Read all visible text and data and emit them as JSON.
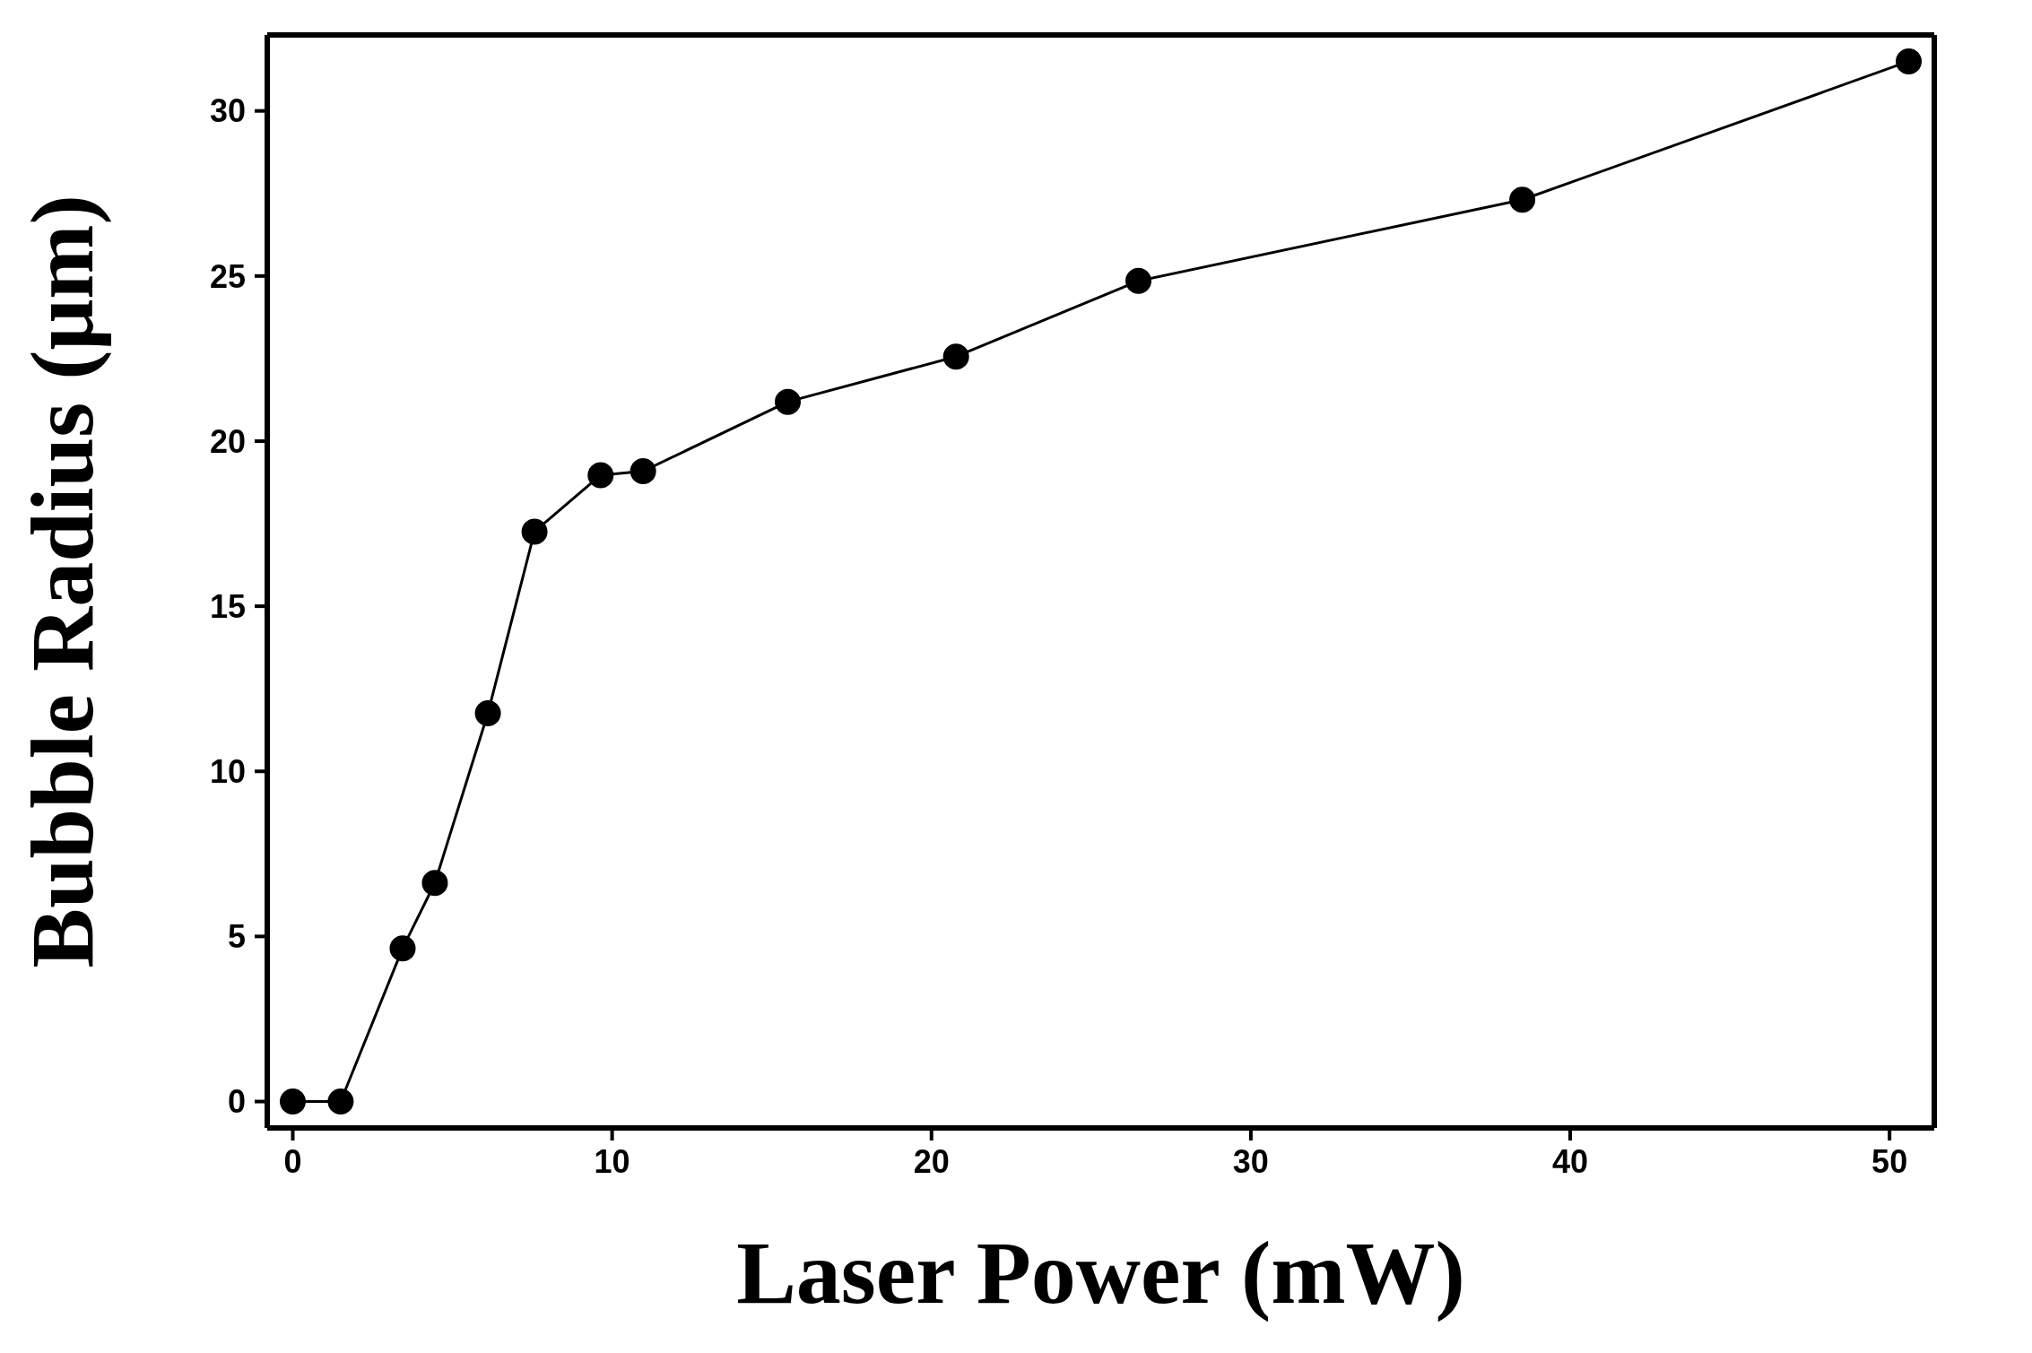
{
  "chart_data": {
    "type": "line",
    "xlabel": "Laser Power (mW)",
    "ylabel": "Bubble Radius (μm)",
    "x": [
      0,
      1.5,
      3.44,
      4.45,
      6.11,
      7.57,
      9.64,
      10.97,
      15.5,
      20.77,
      26.48,
      38.5,
      50.6
    ],
    "series": [
      {
        "color": "#000000",
        "values": [
          0,
          0,
          4.64,
          6.62,
          11.76,
          17.26,
          18.97,
          19.09,
          21.19,
          22.56,
          24.85,
          27.31,
          31.5
        ]
      }
    ],
    "xlim": [
      -0.8,
      51.4
    ],
    "ylim": [
      -0.8,
      32.3
    ],
    "xticks": [
      0,
      10,
      20,
      30,
      40,
      50
    ],
    "yticks": [
      0,
      5,
      10,
      15,
      20,
      25,
      30
    ],
    "marker": "circle",
    "line_style": "solid"
  }
}
